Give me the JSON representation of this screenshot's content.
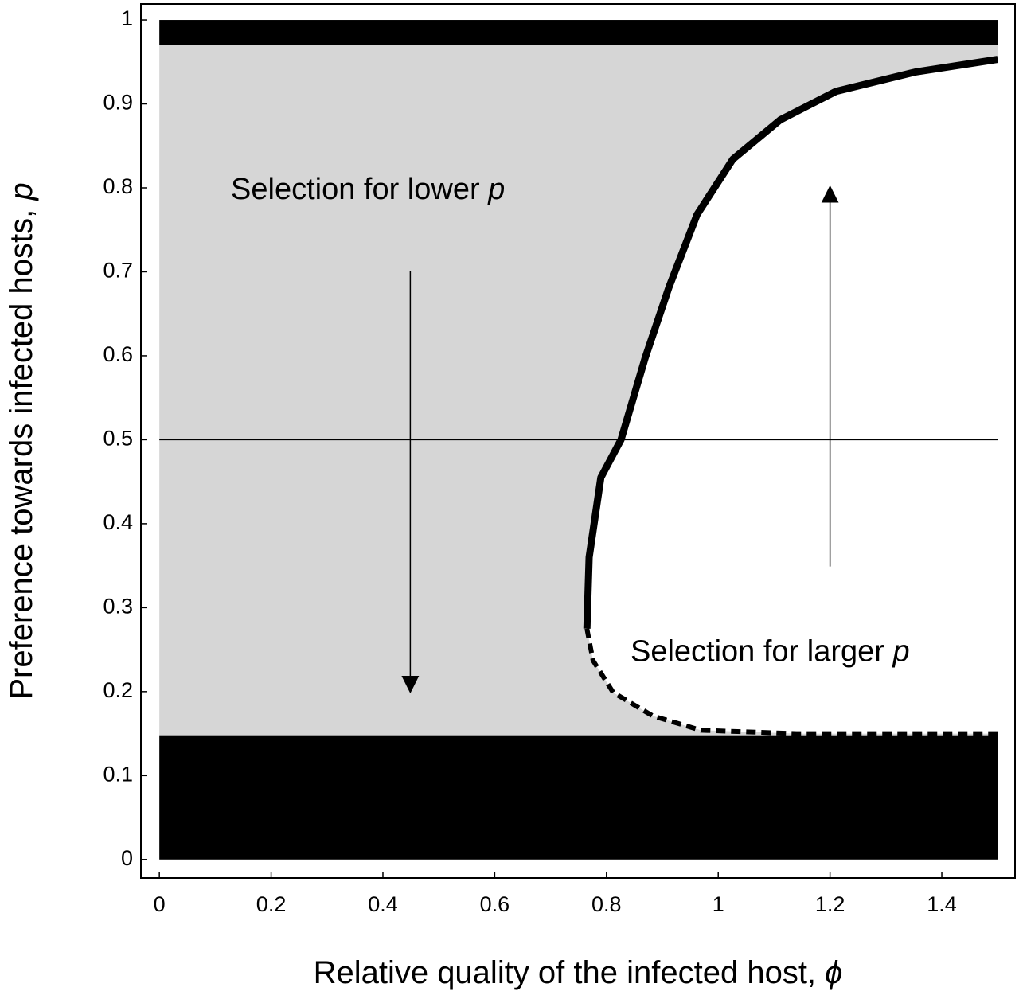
{
  "chart_data": {
    "type": "line",
    "xlabel": {
      "text": "Relative quality of the infected host,",
      "symbol": "ϕ"
    },
    "ylabel": {
      "text": "Preference towards infected hosts,",
      "symbol": "p"
    },
    "xlim": [
      -0.033,
      1.531
    ],
    "ylim": [
      -0.022,
      1.019
    ],
    "xticks": [
      0,
      0.2,
      0.4,
      0.6,
      0.8,
      1,
      1.2,
      1.4
    ],
    "yticks": [
      0,
      0.1,
      0.2,
      0.3,
      0.4,
      0.5,
      0.6,
      0.7,
      0.8,
      0.9,
      1
    ],
    "region_color": "#d6d6d6",
    "bands": [
      {
        "x": [
          0,
          1.5
        ],
        "y": [
          0,
          0.148
        ],
        "color": "#000000"
      },
      {
        "x": [
          0,
          1.5
        ],
        "y": [
          0.97,
          1
        ],
        "color": "#000000"
      }
    ],
    "hlines": [
      {
        "x": [
          0,
          1.5
        ],
        "y": 0.5,
        "color": "#000000"
      }
    ],
    "curves": [
      {
        "style": "solid",
        "color": "#000000",
        "x": [
          0.765,
          0.769,
          0.79,
          0.826,
          0.869,
          0.912,
          0.962,
          1.026,
          1.111,
          1.211,
          1.353,
          1.5
        ],
        "y": [
          0.275,
          0.36,
          0.455,
          0.5,
          0.597,
          0.682,
          0.768,
          0.834,
          0.881,
          0.915,
          0.938,
          0.953
        ]
      },
      {
        "style": "dashed",
        "color": "#000000",
        "x": [
          0.765,
          0.776,
          0.812,
          0.883,
          0.969,
          1.14,
          1.5
        ],
        "y": [
          0.275,
          0.237,
          0.199,
          0.171,
          0.154,
          0.15,
          0.15
        ]
      }
    ],
    "arrows": [
      {
        "x": 0.449,
        "y": [
          0.701,
          0.2
        ]
      },
      {
        "x": 1.2,
        "y": [
          0.349,
          0.801
        ]
      }
    ],
    "annotations": [
      {
        "text": "Selection for lower",
        "symbol": "p",
        "x": 0.128,
        "y": 0.796
      },
      {
        "text": "Selection for larger",
        "symbol": "p",
        "x": 0.843,
        "y": 0.246
      }
    ]
  }
}
